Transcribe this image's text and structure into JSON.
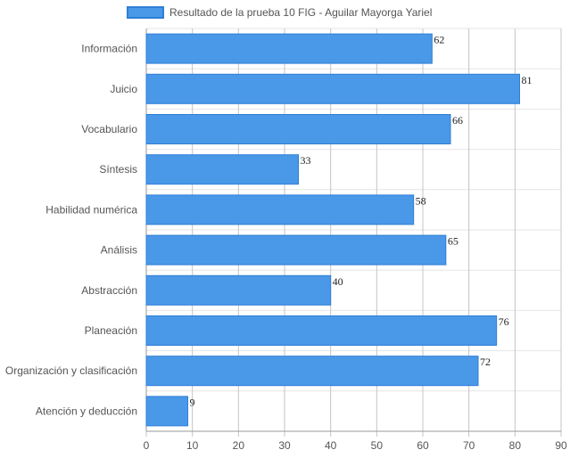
{
  "chart_data": {
    "type": "bar",
    "orientation": "horizontal",
    "categories": [
      "Información",
      "Juicio",
      "Vocabulario",
      "Síntesis",
      "Habilidad numérica",
      "Análisis",
      "Abstracción",
      "Planeación",
      "Organización y clasificación",
      "Atención y deducción"
    ],
    "series": [
      {
        "name": "Resultado de la prueba 10 FIG - Aguilar Mayorga Yariel",
        "values": [
          62,
          81,
          66,
          33,
          58,
          65,
          40,
          76,
          72,
          9
        ],
        "color": "#4a98e8",
        "border_color": "#2e7fd6"
      }
    ],
    "xlim": [
      0,
      90
    ],
    "xticks": [
      0,
      10,
      20,
      30,
      40,
      50,
      60,
      70,
      80,
      90
    ],
    "grid": true,
    "legend": "top",
    "data_labels": true
  }
}
